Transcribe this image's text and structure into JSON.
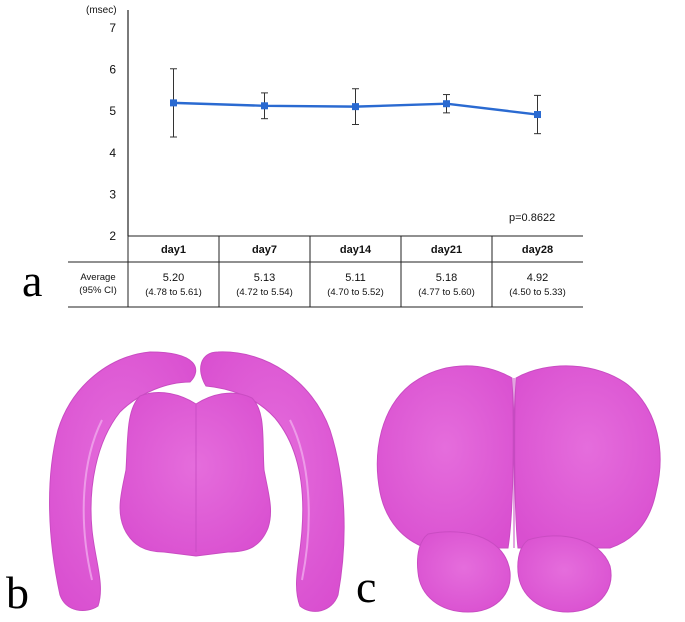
{
  "figure": {
    "panels": [
      {
        "letter": "a"
      },
      {
        "letter": "b"
      },
      {
        "letter": "c"
      }
    ]
  },
  "chart_data": {
    "type": "line",
    "title": "",
    "ylabel": "(msec)",
    "xlabel": "",
    "ylim": [
      2,
      7
    ],
    "yticks": [
      "2",
      "3",
      "4",
      "5",
      "6",
      "7"
    ],
    "categories": [
      "day1",
      "day7",
      "day14",
      "day21",
      "day28"
    ],
    "series": [
      {
        "values": [
          5.2,
          5.13,
          5.11,
          5.18,
          4.92
        ],
        "error_low": [
          4.38,
          4.82,
          4.68,
          4.96,
          4.46
        ],
        "error_high": [
          6.02,
          5.44,
          5.54,
          5.4,
          5.38
        ],
        "color": "#2a6ad1"
      }
    ],
    "annotation": "p=0.8622",
    "grid": false,
    "table": {
      "row_label_line1": "Average",
      "row_label_line2": "(95% CI)",
      "averages": [
        "5.20",
        "5.13",
        "5.11",
        "5.18",
        "4.92"
      ],
      "ci": [
        "(4.78 to 5.61)",
        "(4.72 to 5.54)",
        "(4.70 to 5.52)",
        "(4.77 to 5.60)",
        "(4.50 to 5.33)"
      ]
    }
  },
  "colors": {
    "tissue": "#e15fd8",
    "tissue_light": "#ec8be6",
    "line": "#2a6ad1"
  }
}
